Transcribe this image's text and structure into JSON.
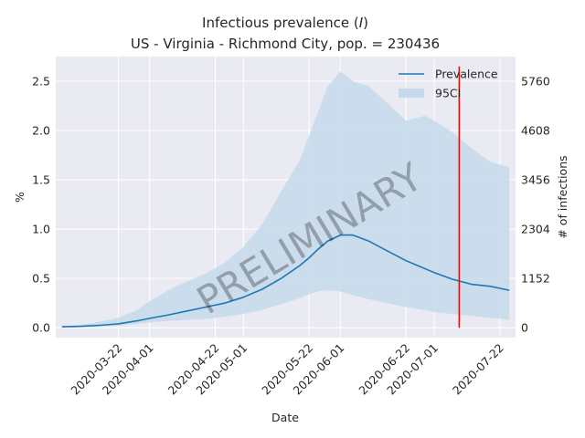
{
  "chart_data": {
    "type": "line",
    "title_line1_prefix": "Infectious prevalence (",
    "title_line1_var": "I",
    "title_line1_suffix": ")",
    "title_line2": "US - Virginia - Richmond City, pop. = 230436",
    "xlabel": "Date",
    "ylabel": "%",
    "ylabel_right": "# of infections",
    "watermark": "PRELIMINARY",
    "population": 230436,
    "x_ticks": [
      "2020-03-22",
      "2020-04-01",
      "2020-04-22",
      "2020-05-01",
      "2020-05-22",
      "2020-06-01",
      "2020-06-22",
      "2020-07-01",
      "2020-07-22"
    ],
    "y_ticks": [
      "0.0",
      "0.5",
      "1.0",
      "1.5",
      "2.0",
      "2.5"
    ],
    "y_ticks_right": [
      "0",
      "1152",
      "2304",
      "3456",
      "4608",
      "5760"
    ],
    "xlim": [
      "2020-03-02",
      "2020-07-27"
    ],
    "ylim": [
      -0.1,
      2.75
    ],
    "grid": true,
    "legend_position": "top-right",
    "legend": [
      {
        "label": "Prevalence",
        "kind": "line"
      },
      {
        "label": "95CI",
        "kind": "band"
      }
    ],
    "colors": {
      "background": "#eaeaf2",
      "grid": "#ffffff",
      "line": "#1f77b4",
      "band": "#c6d9ec",
      "vline": "#ff0000"
    },
    "vline_date": "2020-07-09",
    "series": [
      {
        "name": "Prevalence",
        "x": [
          "2020-03-04",
          "2020-03-10",
          "2020-03-16",
          "2020-03-22",
          "2020-03-28",
          "2020-04-01",
          "2020-04-07",
          "2020-04-13",
          "2020-04-19",
          "2020-04-25",
          "2020-05-01",
          "2020-05-07",
          "2020-05-13",
          "2020-05-19",
          "2020-05-22",
          "2020-05-25",
          "2020-05-28",
          "2020-06-01",
          "2020-06-05",
          "2020-06-10",
          "2020-06-16",
          "2020-06-22",
          "2020-06-28",
          "2020-07-01",
          "2020-07-07",
          "2020-07-13",
          "2020-07-19",
          "2020-07-25"
        ],
        "values": [
          0.01,
          0.015,
          0.025,
          0.04,
          0.07,
          0.095,
          0.13,
          0.17,
          0.21,
          0.25,
          0.31,
          0.39,
          0.5,
          0.63,
          0.71,
          0.8,
          0.88,
          0.94,
          0.94,
          0.88,
          0.78,
          0.68,
          0.6,
          0.56,
          0.49,
          0.44,
          0.42,
          0.38
        ]
      },
      {
        "name": "95CI",
        "x": [
          "2020-03-04",
          "2020-03-10",
          "2020-03-16",
          "2020-03-22",
          "2020-03-28",
          "2020-04-01",
          "2020-04-07",
          "2020-04-13",
          "2020-04-19",
          "2020-04-25",
          "2020-05-01",
          "2020-05-07",
          "2020-05-13",
          "2020-05-19",
          "2020-05-22",
          "2020-05-25",
          "2020-05-28",
          "2020-06-01",
          "2020-06-05",
          "2020-06-10",
          "2020-06-16",
          "2020-06-22",
          "2020-06-28",
          "2020-07-01",
          "2020-07-07",
          "2020-07-13",
          "2020-07-19",
          "2020-07-25"
        ],
        "lower": [
          0.0,
          0.005,
          0.01,
          0.02,
          0.04,
          0.055,
          0.07,
          0.08,
          0.09,
          0.11,
          0.14,
          0.18,
          0.24,
          0.3,
          0.34,
          0.37,
          0.38,
          0.37,
          0.33,
          0.29,
          0.25,
          0.21,
          0.18,
          0.16,
          0.14,
          0.12,
          0.1,
          0.08
        ],
        "upper": [
          0.01,
          0.03,
          0.06,
          0.1,
          0.18,
          0.27,
          0.38,
          0.47,
          0.55,
          0.66,
          0.82,
          1.05,
          1.38,
          1.7,
          1.95,
          2.2,
          2.45,
          2.6,
          2.5,
          2.45,
          2.28,
          2.1,
          2.15,
          2.1,
          1.98,
          1.82,
          1.68,
          1.63
        ]
      }
    ]
  }
}
